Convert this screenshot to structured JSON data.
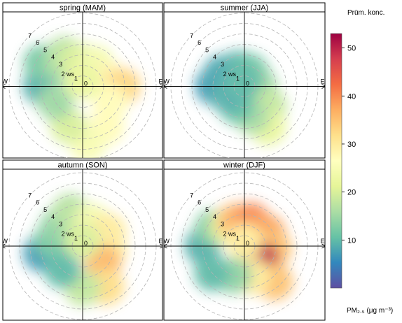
{
  "chart_data": {
    "type": "heatmap",
    "subtype": "polar-plot",
    "panels": [
      {
        "title": "spring (MAM)",
        "blobs": [
          {
            "dir": 270,
            "ws": 4.0,
            "value": 9
          },
          {
            "dir": 300,
            "ws": 4.5,
            "value": 12
          },
          {
            "dir": 315,
            "ws": 3.0,
            "value": 15
          },
          {
            "dir": 330,
            "ws": 3.5,
            "value": 17
          },
          {
            "dir": 350,
            "ws": 2.5,
            "value": 20
          },
          {
            "dir": 30,
            "ws": 2.5,
            "value": 24
          },
          {
            "dir": 75,
            "ws": 2.5,
            "value": 28
          },
          {
            "dir": 90,
            "ws": 3.8,
            "value": 33
          },
          {
            "dir": 120,
            "ws": 3.0,
            "value": 27
          },
          {
            "dir": 150,
            "ws": 4.5,
            "value": 27
          },
          {
            "dir": 175,
            "ws": 5.5,
            "value": 25
          },
          {
            "dir": 200,
            "ws": 4.0,
            "value": 20
          },
          {
            "dir": 240,
            "ws": 3.0,
            "value": 15
          },
          {
            "dir": 0,
            "ws": 0.5,
            "value": 22
          }
        ]
      },
      {
        "title": "summer (JJA)",
        "blobs": [
          {
            "dir": 270,
            "ws": 3.0,
            "value": 7
          },
          {
            "dir": 300,
            "ws": 2.5,
            "value": 8
          },
          {
            "dir": 340,
            "ws": 1.8,
            "value": 9
          },
          {
            "dir": 20,
            "ws": 1.5,
            "value": 11
          },
          {
            "dir": 60,
            "ws": 1.2,
            "value": 13
          },
          {
            "dir": 100,
            "ws": 1.5,
            "value": 15
          },
          {
            "dir": 130,
            "ws": 3.0,
            "value": 18
          },
          {
            "dir": 150,
            "ws": 4.5,
            "value": 22
          },
          {
            "dir": 165,
            "ws": 3.0,
            "value": 16
          },
          {
            "dir": 200,
            "ws": 2.0,
            "value": 11
          },
          {
            "dir": 240,
            "ws": 1.8,
            "value": 9
          },
          {
            "dir": 0,
            "ws": 0.5,
            "value": 10
          }
        ]
      },
      {
        "title": "autumn (SON)",
        "blobs": [
          {
            "dir": 260,
            "ws": 4.0,
            "value": 7
          },
          {
            "dir": 280,
            "ws": 3.0,
            "value": 12
          },
          {
            "dir": 310,
            "ws": 3.0,
            "value": 14
          },
          {
            "dir": 340,
            "ws": 3.5,
            "value": 17
          },
          {
            "dir": 20,
            "ws": 2.5,
            "value": 24
          },
          {
            "dir": 60,
            "ws": 2.8,
            "value": 30
          },
          {
            "dir": 100,
            "ws": 2.5,
            "value": 30
          },
          {
            "dir": 130,
            "ws": 2.5,
            "value": 36
          },
          {
            "dir": 150,
            "ws": 4.5,
            "value": 32
          },
          {
            "dir": 180,
            "ws": 4.0,
            "value": 18
          },
          {
            "dir": 220,
            "ws": 3.0,
            "value": 10
          },
          {
            "dir": 0,
            "ws": 0.5,
            "value": 20
          }
        ]
      },
      {
        "title": "winter (DJF)",
        "blobs": [
          {
            "dir": 270,
            "ws": 4.0,
            "value": 9
          },
          {
            "dir": 300,
            "ws": 3.5,
            "value": 13
          },
          {
            "dir": 320,
            "ws": 2.5,
            "value": 22
          },
          {
            "dir": 340,
            "ws": 2.5,
            "value": 36
          },
          {
            "dir": 15,
            "ws": 2.5,
            "value": 40
          },
          {
            "dir": 60,
            "ws": 2.5,
            "value": 38
          },
          {
            "dir": 95,
            "ws": 2.8,
            "value": 35
          },
          {
            "dir": 130,
            "ws": 2.0,
            "value": 50
          },
          {
            "dir": 140,
            "ws": 4.5,
            "value": 35
          },
          {
            "dir": 165,
            "ws": 3.0,
            "value": 30
          },
          {
            "dir": 200,
            "ws": 3.0,
            "value": 14
          },
          {
            "dir": 230,
            "ws": 4.0,
            "value": 10
          },
          {
            "dir": 0,
            "ws": 0.5,
            "value": 30
          }
        ]
      }
    ],
    "ring_labels": [
      "1",
      "2 ws",
      "3",
      "4",
      "5",
      "6",
      "7"
    ],
    "center_label": "0",
    "directions": {
      "n": "N",
      "e": "E",
      "s": "S",
      "w": "W"
    },
    "legend": {
      "title": "Prūm. konc.",
      "ticks": [
        10,
        20,
        30,
        40,
        50
      ],
      "range": [
        0,
        53
      ],
      "unit_label": "PM₂.₅ (μg m⁻³)",
      "placement": "right"
    },
    "colors": [
      "#5e4fa2",
      "#3288bd",
      "#66c2a5",
      "#abdda4",
      "#e6f598",
      "#ffffbf",
      "#fee08b",
      "#fdae61",
      "#f46d43",
      "#d53e4f",
      "#9e0142"
    ],
    "panel_border_color": "#000000",
    "grid_color": "#b4b4b4"
  }
}
